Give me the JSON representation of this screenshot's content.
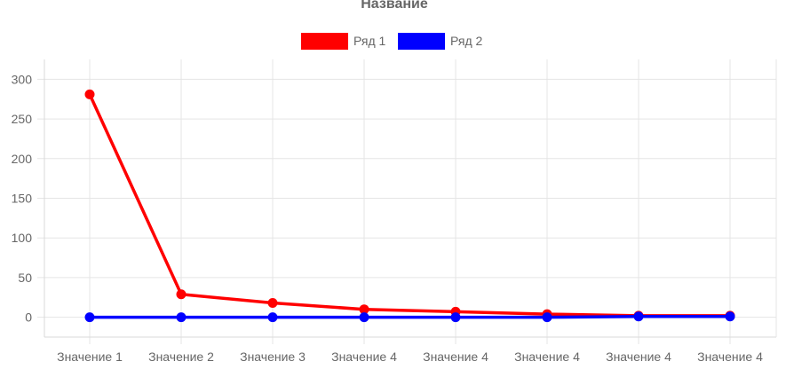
{
  "chart_data": {
    "type": "line",
    "title": "Название",
    "xlabel": "",
    "ylabel": "",
    "categories": [
      "Значение 1",
      "Значение 2",
      "Значение 3",
      "Значение 4",
      "Значение 4",
      "Значение 4",
      "Значение 4",
      "Значение 4"
    ],
    "ylim": [
      -25,
      325
    ],
    "yticks": [
      0,
      50,
      100,
      150,
      200,
      250,
      300
    ],
    "grid": true,
    "legend_position": "top",
    "series": [
      {
        "name": "Ряд 1",
        "color": "#ff0000",
        "values": [
          281,
          29,
          18,
          10,
          7,
          4,
          2,
          2
        ]
      },
      {
        "name": "Ряд 2",
        "color": "#0000ff",
        "values": [
          0,
          0,
          0,
          0,
          0,
          0,
          1,
          1
        ]
      }
    ]
  }
}
